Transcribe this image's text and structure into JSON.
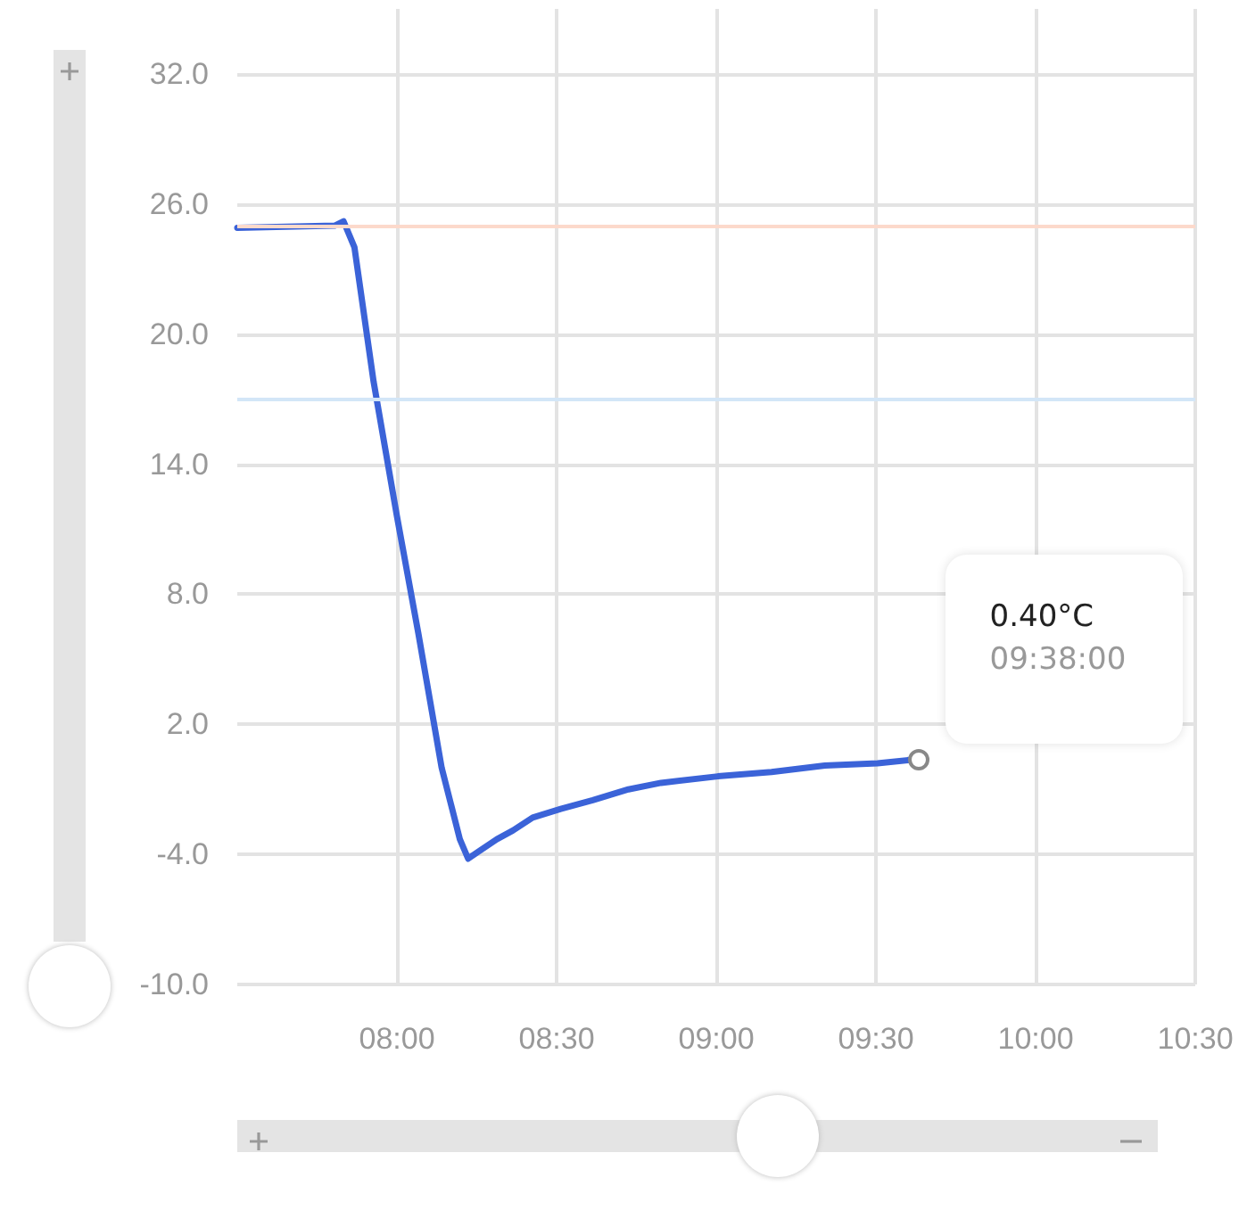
{
  "chart_data": {
    "type": "line",
    "x": [
      7.5,
      7.805,
      7.833,
      7.867,
      7.927,
      8.0,
      8.067,
      8.14,
      8.197,
      8.223,
      8.262,
      8.313,
      8.363,
      8.425,
      8.513,
      8.613,
      8.725,
      8.827,
      9.005,
      9.173,
      9.34,
      9.505,
      9.633
    ],
    "series": [
      {
        "color": "#3b63d8",
        "values": [
          24.9,
          25.0,
          25.2,
          24.0,
          17.8,
          11.6,
          6.2,
          0.0,
          -3.3,
          -4.2,
          -3.8,
          -3.3,
          -2.9,
          -2.3,
          -1.9,
          -1.5,
          -1.0,
          -0.7,
          -0.4,
          -0.2,
          0.1,
          0.2,
          0.4
        ]
      }
    ],
    "xlim": [
      7.5,
      10.5
    ],
    "xticks": [
      {
        "value": 8,
        "label": "08:00"
      },
      {
        "value": 8.5,
        "label": "08:30"
      },
      {
        "value": 9,
        "label": "09:00"
      },
      {
        "value": 9.5,
        "label": "09:30"
      },
      {
        "value": 10,
        "label": "10:00"
      },
      {
        "value": 10.5,
        "label": "10:30"
      }
    ],
    "ylim": [
      -10,
      35
    ],
    "yticks": [
      {
        "value": -10,
        "label": "-10.0"
      },
      {
        "value": -4,
        "label": "-4.0"
      },
      {
        "value": 2,
        "label": "2.0"
      },
      {
        "value": 8,
        "label": "8.0"
      },
      {
        "value": 14,
        "label": "14.0"
      },
      {
        "value": 20,
        "label": "20.0"
      },
      {
        "value": 26,
        "label": "26.0"
      },
      {
        "value": 32,
        "label": "32.0"
      }
    ],
    "ref_lines": [
      {
        "axis": "y",
        "value": 25,
        "color": "#fcd9cb"
      },
      {
        "axis": "y",
        "value": 17,
        "color": "#d3e6f7"
      }
    ],
    "annotations": [
      "0.40°C\n09:38:00"
    ],
    "grid": true,
    "marker": "none",
    "line_style": "solid"
  }
}
